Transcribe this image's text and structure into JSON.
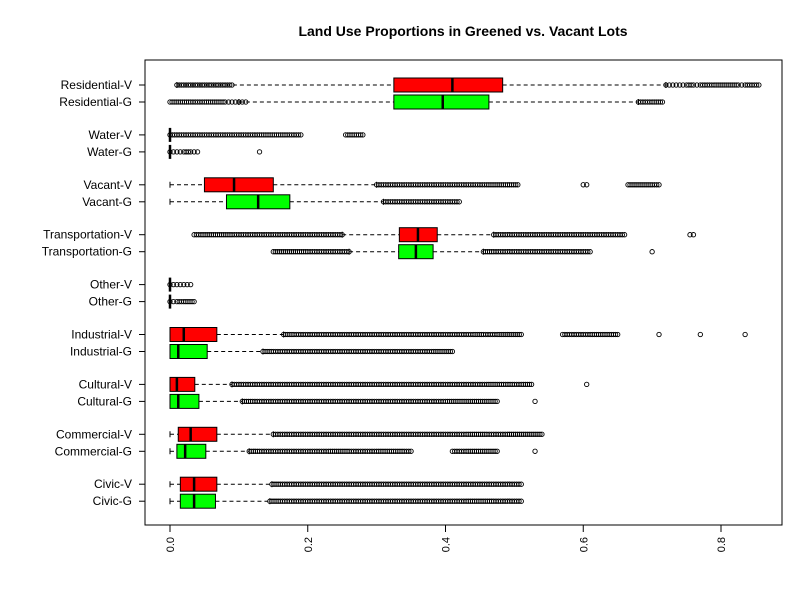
{
  "chart_data": {
    "type": "boxplot",
    "orientation": "horizontal",
    "title": "Land Use Proportions in Greened vs. Vacant Lots",
    "xlabel": "",
    "ylabel": "",
    "xlim": [
      -0.04,
      0.88
    ],
    "x_ticks": [
      0.0,
      0.2,
      0.4,
      0.6,
      0.8
    ],
    "x_tick_labels": [
      "0.0",
      "0.2",
      "0.4",
      "0.6",
      "0.8"
    ],
    "grid": false,
    "legend": "none",
    "colors": {
      "V": "#ff0000",
      "G": "#00ff00",
      "border": "#000000"
    },
    "rows": [
      {
        "label": "Residential-V",
        "group": "V",
        "whisker_low": 0.01,
        "q1": 0.325,
        "median": 0.41,
        "q3": 0.483,
        "whisker_high": 0.72,
        "outliers": [
          0.01,
          0.02,
          0.03,
          0.04,
          0.05,
          0.06,
          0.07,
          0.08,
          0.09,
          0.72,
          0.725,
          0.73,
          0.735,
          0.74,
          0.745,
          0.75,
          0.76,
          0.765,
          0.77,
          0.78,
          0.79,
          0.825,
          0.83,
          0.835,
          0.845,
          0.855
        ]
      },
      {
        "label": "Residential-G",
        "group": "G",
        "whisker_low": 0.1,
        "q1": 0.325,
        "median": 0.396,
        "q3": 0.463,
        "whisker_high": 0.68,
        "outliers": [
          0.0,
          0.03,
          0.05,
          0.08,
          0.085,
          0.09,
          0.095,
          0.1,
          0.105,
          0.11,
          0.68,
          0.69,
          0.7,
          0.715
        ]
      },
      {
        "label": "Water-V",
        "group": "V",
        "whisker_low": 0.0,
        "q1": 0.0,
        "median": 0.0,
        "q3": 0.0,
        "whisker_high": 0.0,
        "outliers": [
          0.0,
          0.01,
          0.02,
          0.03,
          0.04,
          0.05,
          0.06,
          0.07,
          0.08,
          0.09,
          0.1,
          0.12,
          0.13,
          0.17,
          0.18,
          0.19,
          0.255,
          0.28
        ]
      },
      {
        "label": "Water-G",
        "group": "G",
        "whisker_low": 0.0,
        "q1": 0.0,
        "median": 0.0,
        "q3": 0.0,
        "whisker_high": 0.0,
        "outliers": [
          0.0,
          0.005,
          0.01,
          0.015,
          0.02,
          0.03,
          0.035,
          0.04,
          0.13
        ]
      },
      {
        "label": "Vacant-V",
        "group": "V",
        "whisker_low": 0.0,
        "q1": 0.05,
        "median": 0.093,
        "q3": 0.15,
        "whisker_high": 0.3,
        "outliers": [
          0.3,
          0.31,
          0.32,
          0.33,
          0.34,
          0.35,
          0.36,
          0.37,
          0.38,
          0.39,
          0.4,
          0.41,
          0.42,
          0.43,
          0.44,
          0.45,
          0.46,
          0.505,
          0.6,
          0.605,
          0.665,
          0.7,
          0.71
        ]
      },
      {
        "label": "Vacant-G",
        "group": "G",
        "whisker_low": 0.0,
        "q1": 0.082,
        "median": 0.128,
        "q3": 0.174,
        "whisker_high": 0.31,
        "outliers": [
          0.31,
          0.32,
          0.33,
          0.34,
          0.35,
          0.36,
          0.37,
          0.38,
          0.39,
          0.4,
          0.41,
          0.42
        ]
      },
      {
        "label": "Transportation-V",
        "group": "V",
        "whisker_low": 0.25,
        "q1": 0.333,
        "median": 0.36,
        "q3": 0.388,
        "whisker_high": 0.47,
        "outliers": [
          0.035,
          0.045,
          0.09,
          0.1,
          0.11,
          0.13,
          0.15,
          0.17,
          0.19,
          0.21,
          0.23,
          0.25,
          0.47,
          0.49,
          0.51,
          0.53,
          0.55,
          0.57,
          0.59,
          0.61,
          0.63,
          0.64,
          0.65,
          0.66,
          0.755,
          0.76
        ]
      },
      {
        "label": "Transportation-G",
        "group": "G",
        "whisker_low": 0.26,
        "q1": 0.332,
        "median": 0.357,
        "q3": 0.382,
        "whisker_high": 0.455,
        "outliers": [
          0.15,
          0.185,
          0.2,
          0.22,
          0.24,
          0.26,
          0.455,
          0.47,
          0.49,
          0.51,
          0.53,
          0.55,
          0.57,
          0.59,
          0.61,
          0.7
        ]
      },
      {
        "label": "Other-V",
        "group": "V",
        "whisker_low": 0.0,
        "q1": 0.0,
        "median": 0.0,
        "q3": 0.0,
        "whisker_high": 0.0,
        "outliers": [
          0.0,
          0.005,
          0.01,
          0.015,
          0.02,
          0.025,
          0.03
        ]
      },
      {
        "label": "Other-G",
        "group": "G",
        "whisker_low": 0.0,
        "q1": 0.0,
        "median": 0.0,
        "q3": 0.0,
        "whisker_high": 0.0,
        "outliers": [
          0.0,
          0.005,
          0.01,
          0.02,
          0.035
        ]
      },
      {
        "label": "Industrial-V",
        "group": "V",
        "whisker_low": 0.0,
        "q1": 0.0,
        "median": 0.02,
        "q3": 0.068,
        "whisker_high": 0.165,
        "outliers": [
          0.165,
          0.18,
          0.2,
          0.22,
          0.24,
          0.26,
          0.28,
          0.3,
          0.32,
          0.34,
          0.36,
          0.38,
          0.4,
          0.42,
          0.44,
          0.455,
          0.475,
          0.51,
          0.57,
          0.58,
          0.6,
          0.61,
          0.65,
          0.71,
          0.77,
          0.835
        ]
      },
      {
        "label": "Industrial-G",
        "group": "G",
        "whisker_low": 0.0,
        "q1": 0.0,
        "median": 0.012,
        "q3": 0.054,
        "whisker_high": 0.135,
        "outliers": [
          0.135,
          0.15,
          0.17,
          0.19,
          0.21,
          0.23,
          0.25,
          0.27,
          0.29,
          0.31,
          0.33,
          0.35,
          0.36,
          0.37,
          0.38,
          0.41
        ]
      },
      {
        "label": "Cultural-V",
        "group": "V",
        "whisker_low": 0.0,
        "q1": 0.0,
        "median": 0.01,
        "q3": 0.036,
        "whisker_high": 0.09,
        "outliers": [
          0.09,
          0.1,
          0.12,
          0.14,
          0.16,
          0.18,
          0.2,
          0.22,
          0.24,
          0.26,
          0.28,
          0.3,
          0.32,
          0.34,
          0.36,
          0.38,
          0.4,
          0.42,
          0.44,
          0.46,
          0.475,
          0.5,
          0.51,
          0.525,
          0.605
        ]
      },
      {
        "label": "Cultural-G",
        "group": "G",
        "whisker_low": 0.0,
        "q1": 0.0,
        "median": 0.012,
        "q3": 0.042,
        "whisker_high": 0.105,
        "outliers": [
          0.105,
          0.12,
          0.14,
          0.16,
          0.18,
          0.2,
          0.22,
          0.24,
          0.26,
          0.28,
          0.3,
          0.32,
          0.34,
          0.36,
          0.38,
          0.4,
          0.43,
          0.475,
          0.53
        ]
      },
      {
        "label": "Commercial-V",
        "group": "V",
        "whisker_low": 0.0,
        "q1": 0.012,
        "median": 0.03,
        "q3": 0.068,
        "whisker_high": 0.15,
        "outliers": [
          0.15,
          0.17,
          0.19,
          0.21,
          0.23,
          0.25,
          0.27,
          0.29,
          0.31,
          0.33,
          0.35,
          0.37,
          0.39,
          0.41,
          0.43,
          0.445,
          0.46,
          0.47,
          0.48,
          0.49,
          0.54
        ]
      },
      {
        "label": "Commercial-G",
        "group": "G",
        "whisker_low": 0.0,
        "q1": 0.01,
        "median": 0.022,
        "q3": 0.052,
        "whisker_high": 0.115,
        "outliers": [
          0.115,
          0.13,
          0.15,
          0.17,
          0.19,
          0.21,
          0.23,
          0.245,
          0.26,
          0.28,
          0.29,
          0.3,
          0.34,
          0.35,
          0.41,
          0.43,
          0.475,
          0.53
        ]
      },
      {
        "label": "Civic-V",
        "group": "V",
        "whisker_low": 0.0,
        "q1": 0.015,
        "median": 0.035,
        "q3": 0.068,
        "whisker_high": 0.148,
        "outliers": [
          0.148,
          0.16,
          0.18,
          0.2,
          0.22,
          0.24,
          0.26,
          0.28,
          0.3,
          0.32,
          0.34,
          0.36,
          0.38,
          0.4,
          0.42,
          0.44,
          0.46,
          0.48,
          0.49,
          0.5,
          0.51
        ]
      },
      {
        "label": "Civic-G",
        "group": "G",
        "whisker_low": 0.0,
        "q1": 0.015,
        "median": 0.035,
        "q3": 0.066,
        "whisker_high": 0.145,
        "outliers": [
          0.145,
          0.16,
          0.18,
          0.2,
          0.22,
          0.24,
          0.26,
          0.28,
          0.3,
          0.32,
          0.34,
          0.36,
          0.38,
          0.4,
          0.42,
          0.43,
          0.47,
          0.48,
          0.49,
          0.51
        ]
      }
    ]
  }
}
